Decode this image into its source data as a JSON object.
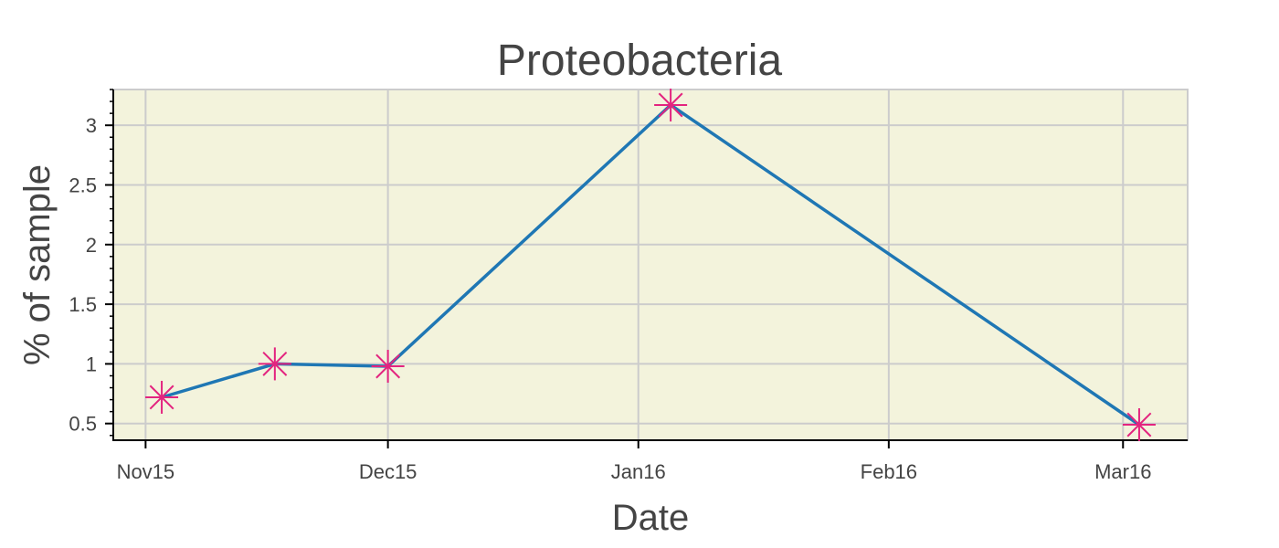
{
  "chart_data": {
    "type": "line",
    "title": "Proteobacteria",
    "xlabel": "Date",
    "ylabel": "% of sample",
    "x_ticks": [
      "Nov15",
      "Dec15",
      "Jan16",
      "Feb16",
      "Mar16"
    ],
    "x_tick_dates": [
      "2015-11-01",
      "2015-12-01",
      "2016-01-01",
      "2016-02-01",
      "2016-03-01"
    ],
    "y_ticks": [
      "0.5",
      "1",
      "1.5",
      "2",
      "2.5",
      "3"
    ],
    "y_tick_values": [
      0.5,
      1,
      1.5,
      2,
      2.5,
      3
    ],
    "xlim": [
      "2015-10-28",
      "2016-03-09"
    ],
    "ylim": [
      0.36,
      3.3
    ],
    "grid": true,
    "series": [
      {
        "x": [
          "2015-11-03",
          "2015-11-17",
          "2015-12-01",
          "2016-01-05",
          "2016-03-03"
        ],
        "y": [
          0.72,
          1.0,
          0.98,
          3.17,
          0.49
        ],
        "line_color": "#1f77b4",
        "marker": "asterisk",
        "marker_color": "#e3247f"
      }
    ],
    "plot_background": "#f3f3dc",
    "grid_color": "#cccccc",
    "text_color": "#444444"
  }
}
